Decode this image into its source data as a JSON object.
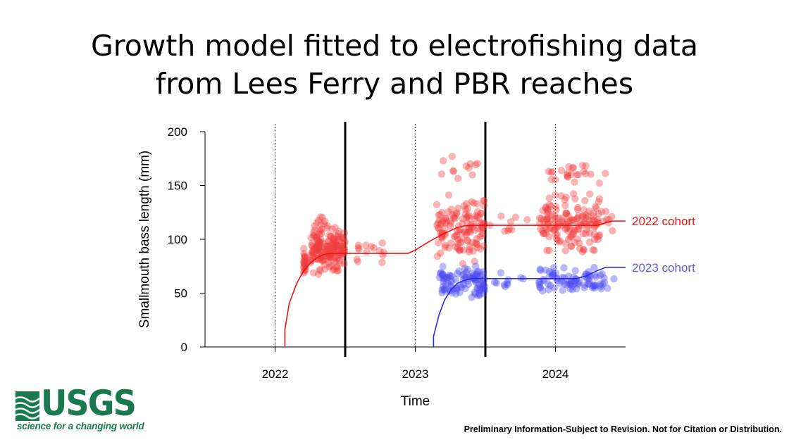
{
  "slide": {
    "title_line1": "Growth model fitted to electrofishing data",
    "title_line2": "from Lees Ferry and PBR reaches",
    "disclaimer": "Preliminary Information-Subject to Revision. Not for Citation or Distribution.",
    "logo_text": "USGS",
    "logo_tagline": "science for a changing world",
    "logo_color": "#1a7a4e"
  },
  "chart_data": {
    "type": "scatter",
    "xlabel": "Time",
    "ylabel": "Smallmouth bass length (mm)",
    "xlim": [
      2021.5,
      2024.5
    ],
    "ylim": [
      0,
      200
    ],
    "yticks": [
      0,
      50,
      100,
      150,
      200
    ],
    "xticks": [
      {
        "value": 2022,
        "label": "2022"
      },
      {
        "value": 2023,
        "label": "2023"
      },
      {
        "value": 2024,
        "label": "2024"
      }
    ],
    "dotted_vlines": [
      2022,
      2023,
      2024
    ],
    "solid_vlines": [
      2022.5,
      2023.5
    ],
    "grid": false,
    "series": [
      {
        "name": "2022 cohort",
        "color": "#ee1111",
        "point_color": "#f03c3c",
        "fit": [
          [
            2022.07,
            0
          ],
          [
            2022.07,
            16
          ],
          [
            2022.1,
            40
          ],
          [
            2022.15,
            58
          ],
          [
            2022.2,
            70
          ],
          [
            2022.25,
            78
          ],
          [
            2022.3,
            83
          ],
          [
            2022.35,
            86
          ],
          [
            2022.4,
            87
          ],
          [
            2022.95,
            87
          ],
          [
            2023.0,
            90
          ],
          [
            2023.1,
            98
          ],
          [
            2023.2,
            105
          ],
          [
            2023.25,
            108
          ],
          [
            2023.3,
            111
          ],
          [
            2023.35,
            112.5
          ],
          [
            2023.4,
            113
          ],
          [
            2023.95,
            113
          ],
          [
            2024.0,
            113
          ],
          [
            2024.3,
            113
          ],
          [
            2024.4,
            117
          ],
          [
            2024.5,
            117
          ]
        ],
        "clusters": [
          {
            "x": [
              2022.2,
              2022.22
            ],
            "y": [
              58,
              98
            ],
            "n": 22
          },
          {
            "x": [
              2022.25,
              2022.5
            ],
            "y": [
              62,
              118
            ],
            "n": 170
          },
          {
            "x": [
              2022.28,
              2022.38
            ],
            "y": [
              108,
              126
            ],
            "n": 10
          },
          {
            "x": [
              2022.55,
              2022.78
            ],
            "y": [
              68,
              110
            ],
            "n": 14
          },
          {
            "x": [
              2023.15,
              2023.5
            ],
            "y": [
              72,
              150
            ],
            "n": 130
          },
          {
            "x": [
              2023.16,
              2023.46
            ],
            "y": [
              150,
              183
            ],
            "n": 12
          },
          {
            "x": [
              2023.5,
              2023.8
            ],
            "y": [
              90,
              128
            ],
            "n": 9
          },
          {
            "x": [
              2023.88,
              2024.32
            ],
            "y": [
              80,
              150
            ],
            "n": 150
          },
          {
            "x": [
              2023.95,
              2024.3
            ],
            "y": [
              150,
              172
            ],
            "n": 22
          },
          {
            "x": [
              2024.3,
              2024.42
            ],
            "y": [
              82,
              167
            ],
            "n": 12
          }
        ]
      },
      {
        "name": "2023 cohort",
        "color": "#2a2aee",
        "point_color": "#4747ee",
        "fit": [
          [
            2023.13,
            0
          ],
          [
            2023.13,
            10
          ],
          [
            2023.17,
            30
          ],
          [
            2023.21,
            44
          ],
          [
            2023.26,
            54
          ],
          [
            2023.3,
            59
          ],
          [
            2023.35,
            62
          ],
          [
            2023.4,
            63.5
          ],
          [
            2023.95,
            63.5
          ],
          [
            2024.15,
            63.5
          ],
          [
            2024.22,
            66
          ],
          [
            2024.3,
            71
          ],
          [
            2024.36,
            74
          ],
          [
            2024.5,
            74
          ]
        ],
        "clusters": [
          {
            "x": [
              2023.17,
              2023.5
            ],
            "y": [
              38,
              80
            ],
            "n": 95
          },
          {
            "x": [
              2023.55,
              2023.78
            ],
            "y": [
              48,
              72
            ],
            "n": 10
          },
          {
            "x": [
              2023.88,
              2024.3
            ],
            "y": [
              42,
              80
            ],
            "n": 75
          },
          {
            "x": [
              2024.3,
              2024.42
            ],
            "y": [
              45,
              76
            ],
            "n": 10
          }
        ]
      }
    ],
    "annotations": [
      {
        "text": "2022 cohort",
        "y": 117,
        "color": "#ee1111"
      },
      {
        "text": "2023 cohort",
        "y": 74,
        "color": "#5a5ae0"
      }
    ]
  }
}
